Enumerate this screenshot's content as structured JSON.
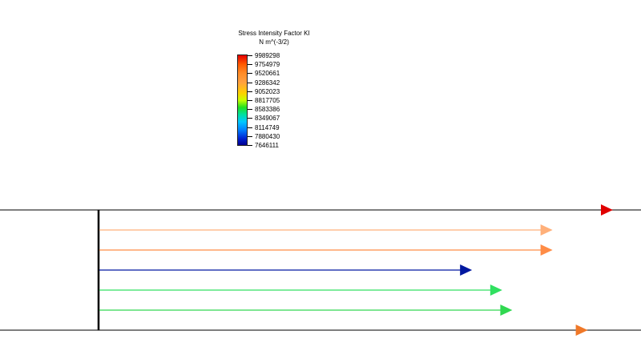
{
  "legend": {
    "title": "Stress Intensity Factor KI",
    "unit": "N m^(-3/2)",
    "ticks": [
      "9989298",
      "9754979",
      "9520661",
      "9286342",
      "9052023",
      "8817705",
      "8583386",
      "8349067",
      "8114749",
      "7880430",
      "7646111"
    ]
  },
  "crack_fronts": [
    {
      "color": "#e00000",
      "extent": 1.0
    },
    {
      "color": "#ffb07a",
      "extent": 0.88
    },
    {
      "color": "#ff8c46",
      "extent": 0.88
    },
    {
      "color": "#0018a0",
      "extent": 0.72
    },
    {
      "color": "#30e060",
      "extent": 0.78
    },
    {
      "color": "#30d850",
      "extent": 0.8
    },
    {
      "color": "#f07828",
      "extent": 0.95
    }
  ]
}
